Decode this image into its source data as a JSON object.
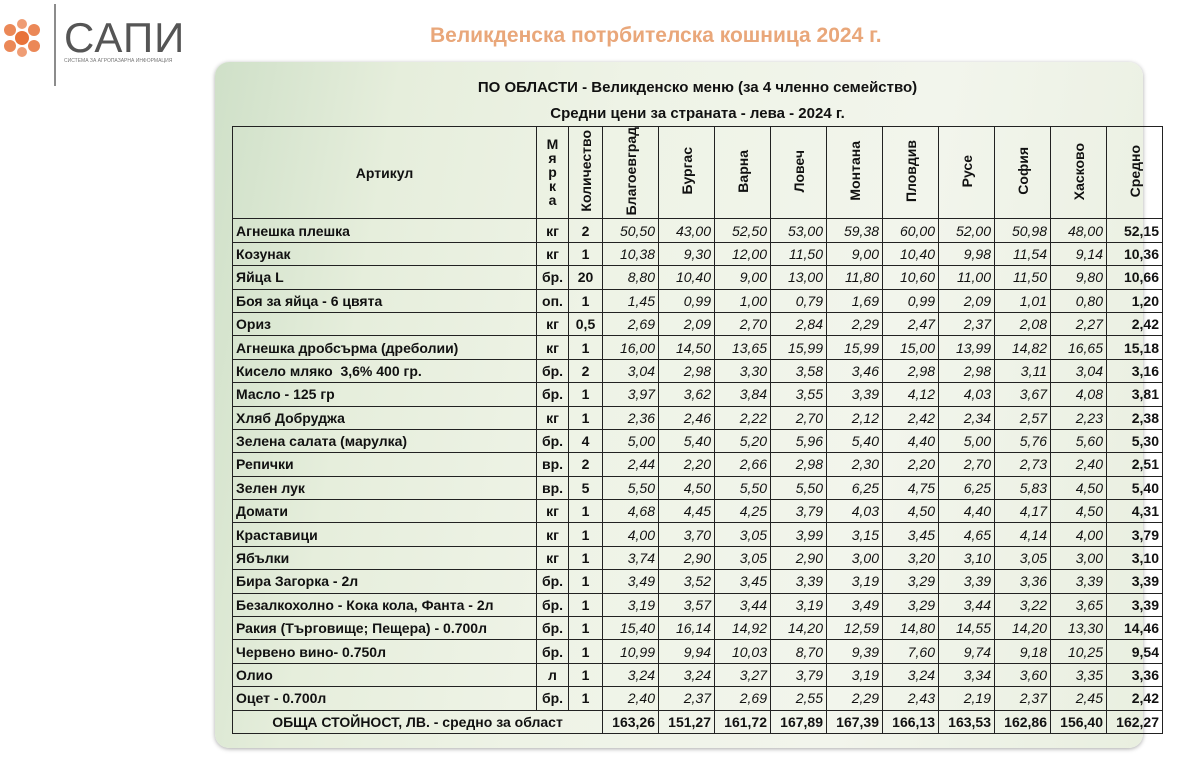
{
  "header": {
    "logo": "САПИ",
    "logo_subtitle": "СИСТЕМА ЗА АГРОПАЗАРНА ИНФОРМАЦИЯ",
    "title": "Великденска потрбителска кошница 2024 г."
  },
  "table": {
    "title": "ПО ОБЛАСТИ - Великденско меню (за 4 членно семейство)",
    "subtitle": "Средни цени за страната - лева - 2024 г.",
    "columns": [
      "Артикул",
      "Мярка",
      "Количество",
      "Благоевград",
      "Бургас",
      "Варна",
      "Ловеч",
      "Монтана",
      "Пловдив",
      "Русе",
      "София",
      "Хасково",
      "Средно"
    ],
    "rows": [
      [
        "Агнешка плешка",
        "кг",
        "2",
        "50,50",
        "43,00",
        "52,50",
        "53,00",
        "59,38",
        "60,00",
        "52,00",
        "50,98",
        "48,00",
        "52,15"
      ],
      [
        "Козунак",
        "кг",
        "1",
        "10,38",
        "9,30",
        "12,00",
        "11,50",
        "9,00",
        "10,40",
        "9,98",
        "11,54",
        "9,14",
        "10,36"
      ],
      [
        "Яйца L",
        "бр.",
        "20",
        "8,80",
        "10,40",
        "9,00",
        "13,00",
        "11,80",
        "10,60",
        "11,00",
        "11,50",
        "9,80",
        "10,66"
      ],
      [
        "Боя за яйца - 6 цвята",
        "оп.",
        "1",
        "1,45",
        "0,99",
        "1,00",
        "0,79",
        "1,69",
        "0,99",
        "2,09",
        "1,01",
        "0,80",
        "1,20"
      ],
      [
        "Ориз",
        "кг",
        "0,5",
        "2,69",
        "2,09",
        "2,70",
        "2,84",
        "2,29",
        "2,47",
        "2,37",
        "2,08",
        "2,27",
        "2,42"
      ],
      [
        "Агнешка дробсърма (дреболии)",
        "кг",
        "1",
        "16,00",
        "14,50",
        "13,65",
        "15,99",
        "15,99",
        "15,00",
        "13,99",
        "14,82",
        "16,65",
        "15,18"
      ],
      [
        "Кисело мляко  3,6% 400 гр.",
        "бр.",
        "2",
        "3,04",
        "2,98",
        "3,30",
        "3,58",
        "3,46",
        "2,98",
        "2,98",
        "3,11",
        "3,04",
        "3,16"
      ],
      [
        "Масло - 125 гр",
        "бр.",
        "1",
        "3,97",
        "3,62",
        "3,84",
        "3,55",
        "3,39",
        "4,12",
        "4,03",
        "3,67",
        "4,08",
        "3,81"
      ],
      [
        "Хляб Добруджа",
        "кг",
        "1",
        "2,36",
        "2,46",
        "2,22",
        "2,70",
        "2,12",
        "2,42",
        "2,34",
        "2,57",
        "2,23",
        "2,38"
      ],
      [
        "Зелена салата (марулка)",
        "бр.",
        "4",
        "5,00",
        "5,40",
        "5,20",
        "5,96",
        "5,40",
        "4,40",
        "5,00",
        "5,76",
        "5,60",
        "5,30"
      ],
      [
        "Репички",
        "вр.",
        "2",
        "2,44",
        "2,20",
        "2,66",
        "2,98",
        "2,30",
        "2,20",
        "2,70",
        "2,73",
        "2,40",
        "2,51"
      ],
      [
        "Зелен лук",
        "вр.",
        "5",
        "5,50",
        "4,50",
        "5,50",
        "5,50",
        "6,25",
        "4,75",
        "6,25",
        "5,83",
        "4,50",
        "5,40"
      ],
      [
        "Домати",
        "кг",
        "1",
        "4,68",
        "4,45",
        "4,25",
        "3,79",
        "4,03",
        "4,50",
        "4,40",
        "4,17",
        "4,50",
        "4,31"
      ],
      [
        "Краставици",
        "кг",
        "1",
        "4,00",
        "3,70",
        "3,05",
        "3,99",
        "3,15",
        "3,45",
        "4,65",
        "4,14",
        "4,00",
        "3,79"
      ],
      [
        "Ябълки",
        "кг",
        "1",
        "3,74",
        "2,90",
        "3,05",
        "2,90",
        "3,00",
        "3,20",
        "3,10",
        "3,05",
        "3,00",
        "3,10"
      ],
      [
        "Бира Загорка - 2л",
        "бр.",
        "1",
        "3,49",
        "3,52",
        "3,45",
        "3,39",
        "3,19",
        "3,29",
        "3,39",
        "3,36",
        "3,39",
        "3,39"
      ],
      [
        "Безалкохолно - Кока кола, Фанта - 2л",
        "бр.",
        "1",
        "3,19",
        "3,57",
        "3,44",
        "3,19",
        "3,49",
        "3,29",
        "3,44",
        "3,22",
        "3,65",
        "3,39"
      ],
      [
        "Ракия (Търговище; Пещера) - 0.700л",
        "бр.",
        "1",
        "15,40",
        "16,14",
        "14,92",
        "14,20",
        "12,59",
        "14,80",
        "14,55",
        "14,20",
        "13,30",
        "14,46"
      ],
      [
        "Червено вино- 0.750л",
        "бр.",
        "1",
        "10,99",
        "9,94",
        "10,03",
        "8,70",
        "9,39",
        "7,60",
        "9,74",
        "9,18",
        "10,25",
        "9,54"
      ],
      [
        "Олио",
        "л",
        "1",
        "3,24",
        "3,24",
        "3,27",
        "3,79",
        "3,19",
        "3,24",
        "3,34",
        "3,60",
        "3,35",
        "3,36"
      ],
      [
        "Оцет - 0.700л",
        "бр.",
        "1",
        "2,40",
        "2,37",
        "2,69",
        "2,55",
        "2,29",
        "2,43",
        "2,19",
        "2,37",
        "2,45",
        "2,42"
      ]
    ],
    "total": [
      "ОБЩА СТОЙНОСТ, ЛВ. - средно за област",
      "163,26",
      "151,27",
      "161,72",
      "167,89",
      "167,39",
      "166,13",
      "163,53",
      "162,86",
      "156,40",
      "162,27"
    ]
  }
}
